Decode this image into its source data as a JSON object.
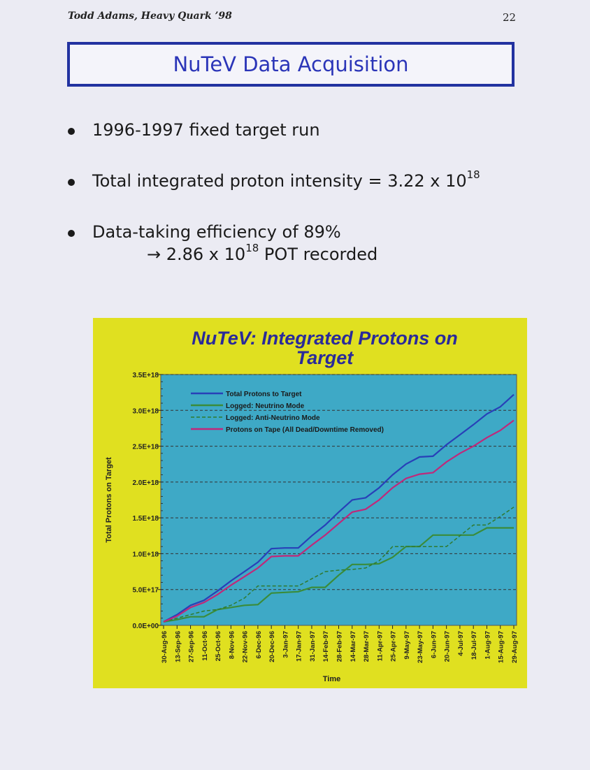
{
  "header": {
    "left": "Todd Adams, Heavy Quark ’98",
    "page_number": "22"
  },
  "slide_title": "NuTeV Data Acquisition",
  "bullets": [
    {
      "text": "1996-1997 fixed target run"
    },
    {
      "text": "Total integrated proton intensity = 3.22 x 10",
      "sup": "18"
    },
    {
      "text": "Data-taking efficiency of 89%"
    }
  ],
  "bullet3_line2": {
    "prefix": "→ 2.86 x 10",
    "sup": "18",
    "suffix": " POT recorded"
  },
  "colors": {
    "title_blue": "#2b35b8",
    "chart_bg": "#e0e020",
    "plot_bg": "#3ea9c6"
  },
  "chart_data": {
    "type": "line",
    "title_lines": [
      "NuTeV: Integrated Protons on",
      "Target"
    ],
    "xlabel": "Time",
    "ylabel": "Total Protons on Target",
    "ylim": [
      0,
      3.5e+18
    ],
    "ytick_labels": [
      "0.0E+00",
      "5.0E+17",
      "1.0E+18",
      "1.5E+18",
      "2.0E+18",
      "2.5E+18",
      "3.0E+18",
      "3.5E+18"
    ],
    "grid": true,
    "legend_position": "top-left",
    "x_tick_labels": [
      "30-Aug-96",
      "13-Sep-96",
      "27-Sep-96",
      "11-Oct-96",
      "25-Oct-96",
      "8-Nov-96",
      "22-Nov-96",
      "6-Dec-96",
      "20-Dec-96",
      "3-Jan-97",
      "17-Jan-97",
      "31-Jan-97",
      "14-Feb-97",
      "28-Feb-97",
      "14-Mar-97",
      "28-Mar-97",
      "11-Apr-97",
      "25-Apr-97",
      "9-May-97",
      "23-May-97",
      "6-Jun-97",
      "20-Jun-97",
      "4-Jul-97",
      "18-Jul-97",
      "1-Aug-97",
      "15-Aug-97",
      "29-Aug-97"
    ],
    "series": [
      {
        "name": "Total Protons to Target",
        "color": "#2840b8",
        "dash": false,
        "points": [
          [
            "30-Aug-96",
            5e+16
          ],
          [
            "13-Sep-96",
            1.5e+17
          ],
          [
            "27-Sep-96",
            2.8e+17
          ],
          [
            "11-Oct-96",
            3.5e+17
          ],
          [
            "25-Oct-96",
            4.8e+17
          ],
          [
            "8-Nov-96",
            6.2e+17
          ],
          [
            "22-Nov-96",
            7.5e+17
          ],
          [
            "6-Dec-96",
            8.8e+17
          ],
          [
            "20-Dec-96",
            1.07e+18
          ],
          [
            "3-Jan-97",
            1.08e+18
          ],
          [
            "17-Jan-97",
            1.08e+18
          ],
          [
            "31-Jan-97",
            1.25e+18
          ],
          [
            "14-Feb-97",
            1.4e+18
          ],
          [
            "28-Feb-97",
            1.58e+18
          ],
          [
            "14-Mar-97",
            1.75e+18
          ],
          [
            "28-Mar-97",
            1.78e+18
          ],
          [
            "11-Apr-97",
            1.92e+18
          ],
          [
            "25-Apr-97",
            2.1e+18
          ],
          [
            "9-May-97",
            2.25e+18
          ],
          [
            "23-May-97",
            2.35e+18
          ],
          [
            "6-Jun-97",
            2.36e+18
          ],
          [
            "20-Jun-97",
            2.52e+18
          ],
          [
            "4-Jul-97",
            2.66e+18
          ],
          [
            "18-Jul-97",
            2.8e+18
          ],
          [
            "1-Aug-97",
            2.95e+18
          ],
          [
            "15-Aug-97",
            3.05e+18
          ],
          [
            "29-Aug-97",
            3.22e+18
          ]
        ]
      },
      {
        "name": "Logged: Neutrino Mode",
        "color": "#3a8c3a",
        "dash": false,
        "points": [
          [
            "30-Aug-96",
            5e+16
          ],
          [
            "13-Sep-96",
            8e+16
          ],
          [
            "27-Sep-96",
            1.2e+17
          ],
          [
            "11-Oct-96",
            1.2e+17
          ],
          [
            "25-Oct-96",
            2.2e+17
          ],
          [
            "8-Nov-96",
            2.5e+17
          ],
          [
            "22-Nov-96",
            2.8e+17
          ],
          [
            "6-Dec-96",
            2.9e+17
          ],
          [
            "20-Dec-96",
            4.5e+17
          ],
          [
            "3-Jan-97",
            4.6e+17
          ],
          [
            "17-Jan-97",
            4.7e+17
          ],
          [
            "31-Jan-97",
            5.3e+17
          ],
          [
            "14-Feb-97",
            5.3e+17
          ],
          [
            "28-Feb-97",
            7e+17
          ],
          [
            "14-Mar-97",
            8.5e+17
          ],
          [
            "28-Mar-97",
            8.5e+17
          ],
          [
            "11-Apr-97",
            8.6e+17
          ],
          [
            "25-Apr-97",
            9.5e+17
          ],
          [
            "9-May-97",
            1.1e+18
          ],
          [
            "23-May-97",
            1.1e+18
          ],
          [
            "6-Jun-97",
            1.26e+18
          ],
          [
            "20-Jun-97",
            1.26e+18
          ],
          [
            "4-Jul-97",
            1.26e+18
          ],
          [
            "18-Jul-97",
            1.26e+18
          ],
          [
            "1-Aug-97",
            1.36e+18
          ],
          [
            "15-Aug-97",
            1.36e+18
          ],
          [
            "29-Aug-97",
            1.36e+18
          ]
        ]
      },
      {
        "name": "Logged: Anti-Neutrino Mode",
        "color": "#2f7a2f",
        "dash": true,
        "points": [
          [
            "30-Aug-96",
            5e+16
          ],
          [
            "13-Sep-96",
            1e+17
          ],
          [
            "27-Sep-96",
            1.5e+17
          ],
          [
            "11-Oct-96",
            2e+17
          ],
          [
            "25-Oct-96",
            2.2e+17
          ],
          [
            "8-Nov-96",
            2.8e+17
          ],
          [
            "22-Nov-96",
            3.8e+17
          ],
          [
            "6-Dec-96",
            5.5e+17
          ],
          [
            "20-Dec-96",
            5.5e+17
          ],
          [
            "3-Jan-97",
            5.5e+17
          ],
          [
            "17-Jan-97",
            5.5e+17
          ],
          [
            "31-Jan-97",
            6.5e+17
          ],
          [
            "14-Feb-97",
            7.5e+17
          ],
          [
            "28-Feb-97",
            7.7e+17
          ],
          [
            "14-Mar-97",
            7.8e+17
          ],
          [
            "28-Mar-97",
            8e+17
          ],
          [
            "11-Apr-97",
            9e+17
          ],
          [
            "25-Apr-97",
            1.1e+18
          ],
          [
            "9-May-97",
            1.1e+18
          ],
          [
            "23-May-97",
            1.1e+18
          ],
          [
            "6-Jun-97",
            1.1e+18
          ],
          [
            "20-Jun-97",
            1.1e+18
          ],
          [
            "4-Jul-97",
            1.25e+18
          ],
          [
            "18-Jul-97",
            1.4e+18
          ],
          [
            "1-Aug-97",
            1.4e+18
          ],
          [
            "15-Aug-97",
            1.52e+18
          ],
          [
            "29-Aug-97",
            1.65e+18
          ]
        ]
      },
      {
        "name": "Protons on Tape (All Dead/Downtime Removed)",
        "color": "#c0287a",
        "dash": false,
        "points": [
          [
            "30-Aug-96",
            5e+16
          ],
          [
            "13-Sep-96",
            1.3e+17
          ],
          [
            "27-Sep-96",
            2.5e+17
          ],
          [
            "11-Oct-96",
            3.2e+17
          ],
          [
            "25-Oct-96",
            4.3e+17
          ],
          [
            "8-Nov-96",
            5.6e+17
          ],
          [
            "22-Nov-96",
            6.8e+17
          ],
          [
            "6-Dec-96",
            8e+17
          ],
          [
            "20-Dec-96",
            9.6e+17
          ],
          [
            "3-Jan-97",
            9.7e+17
          ],
          [
            "17-Jan-97",
            9.7e+17
          ],
          [
            "31-Jan-97",
            1.12e+18
          ],
          [
            "14-Feb-97",
            1.26e+18
          ],
          [
            "28-Feb-97",
            1.42e+18
          ],
          [
            "14-Mar-97",
            1.58e+18
          ],
          [
            "28-Mar-97",
            1.62e+18
          ],
          [
            "11-Apr-97",
            1.75e+18
          ],
          [
            "25-Apr-97",
            1.92e+18
          ],
          [
            "9-May-97",
            2.05e+18
          ],
          [
            "23-May-97",
            2.11e+18
          ],
          [
            "6-Jun-97",
            2.13e+18
          ],
          [
            "20-Jun-97",
            2.28e+18
          ],
          [
            "4-Jul-97",
            2.4e+18
          ],
          [
            "18-Jul-97",
            2.5e+18
          ],
          [
            "1-Aug-97",
            2.62e+18
          ],
          [
            "15-Aug-97",
            2.72e+18
          ],
          [
            "29-Aug-97",
            2.86e+18
          ]
        ]
      }
    ]
  }
}
